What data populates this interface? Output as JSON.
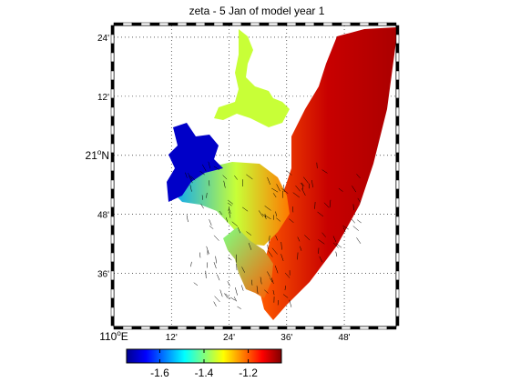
{
  "title": "zeta - 5 Jan of model year 1",
  "map": {
    "lon_range": [
      110.0,
      110.98
    ],
    "lat_range": [
      20.42,
      21.44
    ],
    "grid": true,
    "lon_ticks": [
      {
        "value": 110.0,
        "label": "110",
        "suffix": "E",
        "degree": true
      },
      {
        "value": 110.2,
        "label": "12'"
      },
      {
        "value": 110.4,
        "label": "24'"
      },
      {
        "value": 110.6,
        "label": "36'"
      },
      {
        "value": 110.8,
        "label": "48'"
      }
    ],
    "lat_ticks": [
      {
        "value": 20.6,
        "label": "36'"
      },
      {
        "value": 20.8,
        "label": "48'"
      },
      {
        "value": 21.0,
        "label": "21",
        "suffix": "N",
        "degree": true
      },
      {
        "value": 21.2,
        "label": "12'"
      },
      {
        "value": 21.4,
        "label": "24'"
      }
    ]
  },
  "colorbar": {
    "range": [
      -1.75,
      -1.05
    ],
    "colormap": "jet",
    "ticks": [
      {
        "value": -1.6,
        "label": "-1.6"
      },
      {
        "value": -1.4,
        "label": "-1.4"
      },
      {
        "value": -1.2,
        "label": "-1.2"
      }
    ]
  },
  "chart_data": {
    "type": "heatmap",
    "variable": "zeta",
    "title": "zeta - 5 Jan of model year 1",
    "x_axis": "longitude",
    "y_axis": "latitude",
    "xlim": [
      110.0,
      110.98
    ],
    "ylim": [
      20.42,
      21.44
    ],
    "clim": [
      -1.75,
      -1.05
    ],
    "colorbar_ticks": [
      -1.6,
      -1.4,
      -1.2
    ],
    "approx_field": {
      "west_bay_min": -1.7,
      "inner_bay": -1.5,
      "channel_mid": -1.35,
      "open_sea_east": -1.1
    },
    "vectors": true
  }
}
